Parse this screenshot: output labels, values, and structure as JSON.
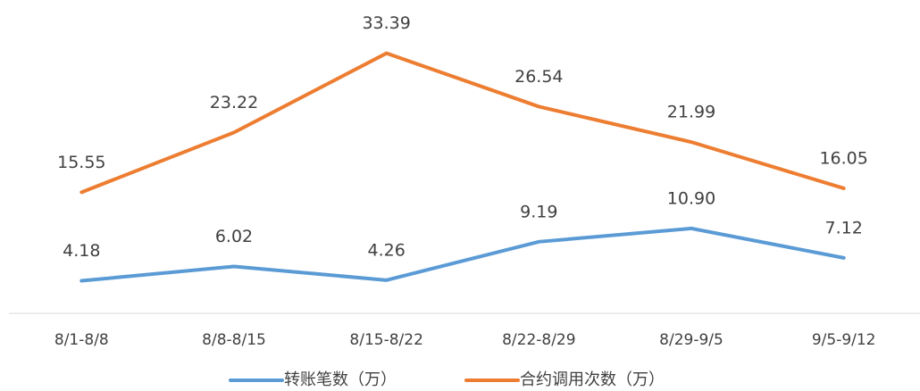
{
  "chart_data": {
    "type": "line",
    "categories": [
      "8/1-8/8",
      "8/8-8/15",
      "8/15-8/22",
      "8/22-8/29",
      "8/29-9/5",
      "9/5-9/12"
    ],
    "series": [
      {
        "name": "转账笔数（万）",
        "color": "#5b9bd5",
        "values": [
          4.18,
          6.02,
          4.26,
          9.19,
          10.9,
          7.12
        ],
        "value_labels": [
          "4.18",
          "6.02",
          "4.26",
          "9.19",
          "10.90",
          "7.12"
        ]
      },
      {
        "name": "合约调用次数（万）",
        "color": "#ed7d31",
        "values": [
          15.55,
          23.22,
          33.39,
          26.54,
          21.99,
          16.05
        ],
        "value_labels": [
          "15.55",
          "23.22",
          "33.39",
          "26.54",
          "21.99",
          "16.05"
        ]
      }
    ],
    "ylim": [
      0,
      40
    ],
    "legend": "bottom",
    "grid": false
  }
}
